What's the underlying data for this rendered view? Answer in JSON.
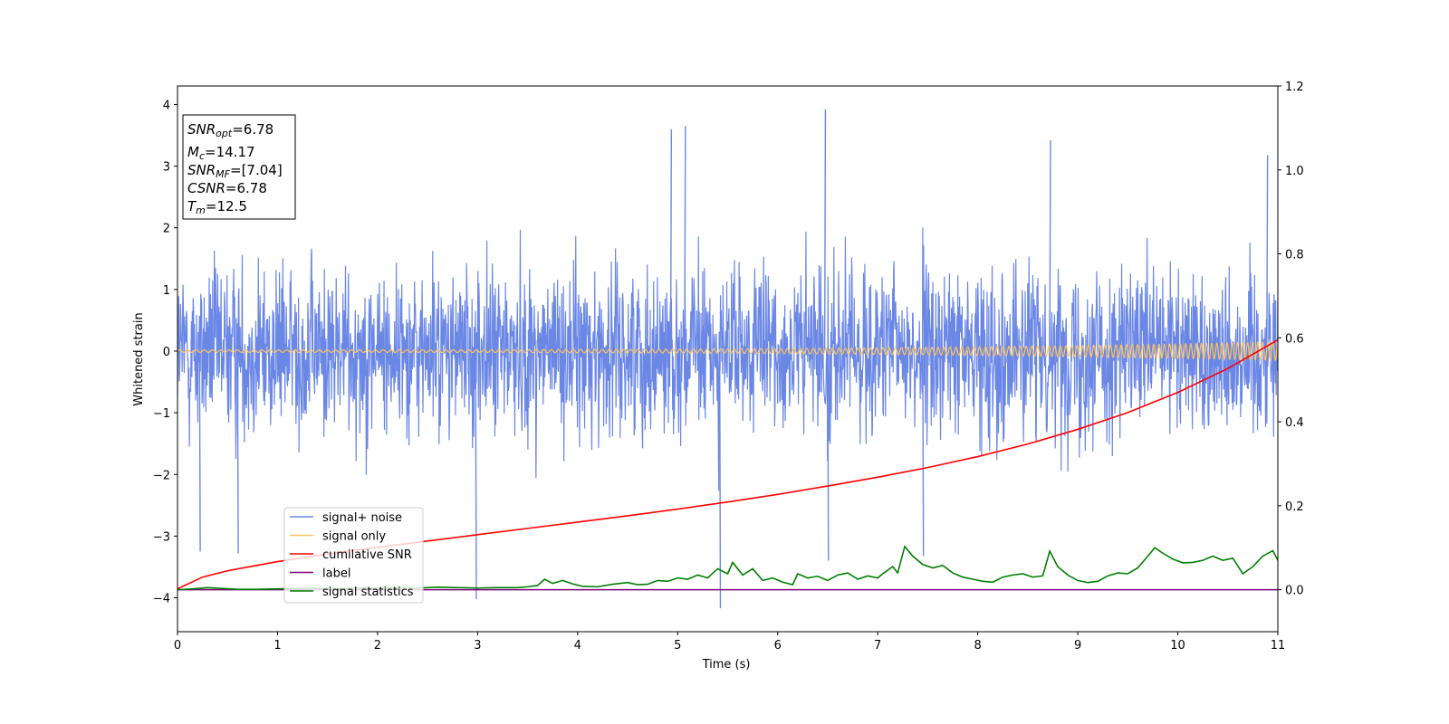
{
  "chart_data": {
    "type": "line",
    "xlabel": "Time (s)",
    "ylabel_left": "Whitened strain",
    "ylabel_right": "",
    "xlim": [
      0,
      11
    ],
    "ylim_left": [
      -4.55,
      4.3
    ],
    "ylim_right": [
      -0.1,
      1.2
    ],
    "x_ticks": [
      0,
      1,
      2,
      3,
      4,
      5,
      6,
      7,
      8,
      9,
      10,
      11
    ],
    "y_left_ticks": [
      -4,
      -3,
      -2,
      -1,
      0,
      1,
      2,
      3,
      4
    ],
    "y_right_ticks": [
      "0.0",
      "0.2",
      "0.4",
      "0.6",
      "0.8",
      "1.0",
      "1.2"
    ],
    "grid": false,
    "legend_position": "lower-left",
    "series": [
      {
        "name": "signal+ noise",
        "axis": "left",
        "color": "#6b87e6",
        "description": "whitened strain noise, spans approx -4.2 to 3.9",
        "amplitude_range": [
          -4.2,
          3.9
        ],
        "spikes": [
          {
            "x": 6.47,
            "y": 3.92
          },
          {
            "x": 5.07,
            "y": 3.65
          },
          {
            "x": 4.93,
            "y": 3.6
          },
          {
            "x": 10.89,
            "y": 3.18
          },
          {
            "x": 8.72,
            "y": 3.42
          },
          {
            "x": 5.42,
            "y": -4.17
          },
          {
            "x": 2.98,
            "y": -4.02
          },
          {
            "x": 0.22,
            "y": -3.25
          },
          {
            "x": 0.6,
            "y": -3.28
          },
          {
            "x": 6.5,
            "y": -3.4
          },
          {
            "x": 7.45,
            "y": -3.32
          }
        ]
      },
      {
        "name": "signal only",
        "axis": "left",
        "color": "#ffc35a",
        "description": "chirp oscillating around 0 with growing amplitude",
        "amplitude_start": 0.02,
        "amplitude_end": 0.15
      },
      {
        "name": "cumilative SNR",
        "axis": "right",
        "color": "#ff0000",
        "x": [
          0,
          0.25,
          0.5,
          1,
          1.5,
          2,
          2.5,
          3,
          3.5,
          4,
          4.5,
          5,
          5.5,
          6,
          6.5,
          7,
          7.5,
          8,
          8.5,
          9,
          9.5,
          10,
          10.5,
          11
        ],
        "values": [
          0.002,
          0.03,
          0.045,
          0.067,
          0.085,
          0.101,
          0.116,
          0.131,
          0.146,
          0.161,
          0.176,
          0.192,
          0.209,
          0.227,
          0.247,
          0.268,
          0.291,
          0.317,
          0.347,
          0.382,
          0.422,
          0.47,
          0.527,
          0.595
        ]
      },
      {
        "name": "label",
        "axis": "right",
        "color": "#800080",
        "x": [
          0,
          11
        ],
        "values": [
          0.0,
          0.0
        ]
      },
      {
        "name": "signal statistics",
        "axis": "right",
        "color": "#008000",
        "x": [
          0,
          0.15,
          0.3,
          0.45,
          0.6,
          0.8,
          1.0,
          1.2,
          1.4,
          1.6,
          1.8,
          2.0,
          2.2,
          2.4,
          2.6,
          2.8,
          3.0,
          3.2,
          3.4,
          3.5,
          3.6,
          3.67,
          3.75,
          3.85,
          3.95,
          4.05,
          4.2,
          4.35,
          4.5,
          4.6,
          4.7,
          4.8,
          4.9,
          5.0,
          5.1,
          5.2,
          5.3,
          5.4,
          5.5,
          5.55,
          5.65,
          5.75,
          5.85,
          5.95,
          6.05,
          6.15,
          6.2,
          6.3,
          6.4,
          6.5,
          6.6,
          6.7,
          6.8,
          6.9,
          7.0,
          7.05,
          7.15,
          7.2,
          7.27,
          7.35,
          7.45,
          7.55,
          7.65,
          7.75,
          7.85,
          7.95,
          8.05,
          8.15,
          8.25,
          8.35,
          8.45,
          8.55,
          8.65,
          8.72,
          8.8,
          8.9,
          9.0,
          9.1,
          9.2,
          9.3,
          9.4,
          9.5,
          9.6,
          9.7,
          9.77,
          9.85,
          9.95,
          10.05,
          10.15,
          10.25,
          10.35,
          10.45,
          10.55,
          10.65,
          10.75,
          10.85,
          10.95,
          11.0
        ],
        "values": [
          0.0,
          0.002,
          0.005,
          0.003,
          0.001,
          0.001,
          0.002,
          0.003,
          0.004,
          0.002,
          0.004,
          0.003,
          0.005,
          0.004,
          0.006,
          0.005,
          0.004,
          0.005,
          0.005,
          0.007,
          0.01,
          0.025,
          0.015,
          0.022,
          0.014,
          0.008,
          0.007,
          0.013,
          0.017,
          0.012,
          0.013,
          0.022,
          0.02,
          0.028,
          0.025,
          0.035,
          0.028,
          0.05,
          0.038,
          0.065,
          0.035,
          0.05,
          0.022,
          0.028,
          0.018,
          0.012,
          0.038,
          0.028,
          0.032,
          0.022,
          0.035,
          0.04,
          0.025,
          0.033,
          0.028,
          0.038,
          0.055,
          0.04,
          0.103,
          0.08,
          0.06,
          0.052,
          0.058,
          0.04,
          0.03,
          0.025,
          0.02,
          0.018,
          0.03,
          0.035,
          0.038,
          0.03,
          0.033,
          0.092,
          0.055,
          0.035,
          0.022,
          0.017,
          0.02,
          0.033,
          0.04,
          0.038,
          0.052,
          0.08,
          0.1,
          0.087,
          0.073,
          0.064,
          0.065,
          0.07,
          0.08,
          0.07,
          0.075,
          0.038,
          0.055,
          0.08,
          0.093,
          0.07
        ]
      }
    ]
  },
  "info_box": {
    "snr_opt": {
      "name": "SNR",
      "sub": "opt",
      "value": "=6.78"
    },
    "mc": {
      "name": "M",
      "sub": "c",
      "value": "=14.17"
    },
    "snr_mf": {
      "name": "SNR",
      "sub": "MF",
      "value": "=[7.04]"
    },
    "csnr": {
      "name": "CSNR",
      "value": "=6.78"
    },
    "tm": {
      "name": "T",
      "sub": "m",
      "value": "=12.5"
    }
  }
}
